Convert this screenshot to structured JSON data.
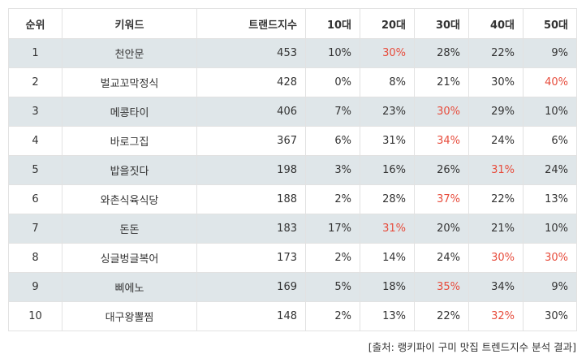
{
  "table": {
    "headers": [
      "순위",
      "키워드",
      "트랜드지수",
      "10대",
      "20대",
      "30대",
      "40대",
      "50대"
    ],
    "rows": [
      {
        "rank": "1",
        "keyword": "천안문",
        "index": "453",
        "ages": [
          "10%",
          "30%",
          "28%",
          "22%",
          "9%"
        ],
        "highlight": 1
      },
      {
        "rank": "2",
        "keyword": "벌교꼬막정식",
        "index": "428",
        "ages": [
          "0%",
          "8%",
          "21%",
          "30%",
          "40%"
        ],
        "highlight": 4
      },
      {
        "rank": "3",
        "keyword": "메콩타이",
        "index": "406",
        "ages": [
          "7%",
          "23%",
          "30%",
          "29%",
          "10%"
        ],
        "highlight": 2
      },
      {
        "rank": "4",
        "keyword": "바로그집",
        "index": "367",
        "ages": [
          "6%",
          "31%",
          "34%",
          "24%",
          "6%"
        ],
        "highlight": 2
      },
      {
        "rank": "5",
        "keyword": "밥을짓다",
        "index": "198",
        "ages": [
          "3%",
          "16%",
          "26%",
          "31%",
          "24%"
        ],
        "highlight": 3
      },
      {
        "rank": "6",
        "keyword": "와촌식육식당",
        "index": "188",
        "ages": [
          "2%",
          "28%",
          "37%",
          "22%",
          "13%"
        ],
        "highlight": 2
      },
      {
        "rank": "7",
        "keyword": "돈돈",
        "index": "183",
        "ages": [
          "17%",
          "31%",
          "20%",
          "21%",
          "10%"
        ],
        "highlight": 1
      },
      {
        "rank": "8",
        "keyword": "싱글벙글복어",
        "index": "173",
        "ages": [
          "2%",
          "14%",
          "24%",
          "30%",
          "30%"
        ],
        "highlight": [
          3,
          4
        ]
      },
      {
        "rank": "9",
        "keyword": "삐에노",
        "index": "169",
        "ages": [
          "5%",
          "18%",
          "35%",
          "34%",
          "9%"
        ],
        "highlight": 2
      },
      {
        "rank": "10",
        "keyword": "대구왕뽈찜",
        "index": "148",
        "ages": [
          "2%",
          "13%",
          "22%",
          "32%",
          "30%"
        ],
        "highlight": 3
      }
    ]
  },
  "source": "[출처: 랭키파이 구미 맛집 트렌드지수 분석 결과]",
  "colors": {
    "highlight": "#e74c3c",
    "stripe": "#dfe6e9",
    "border": "#e2e2e2"
  }
}
